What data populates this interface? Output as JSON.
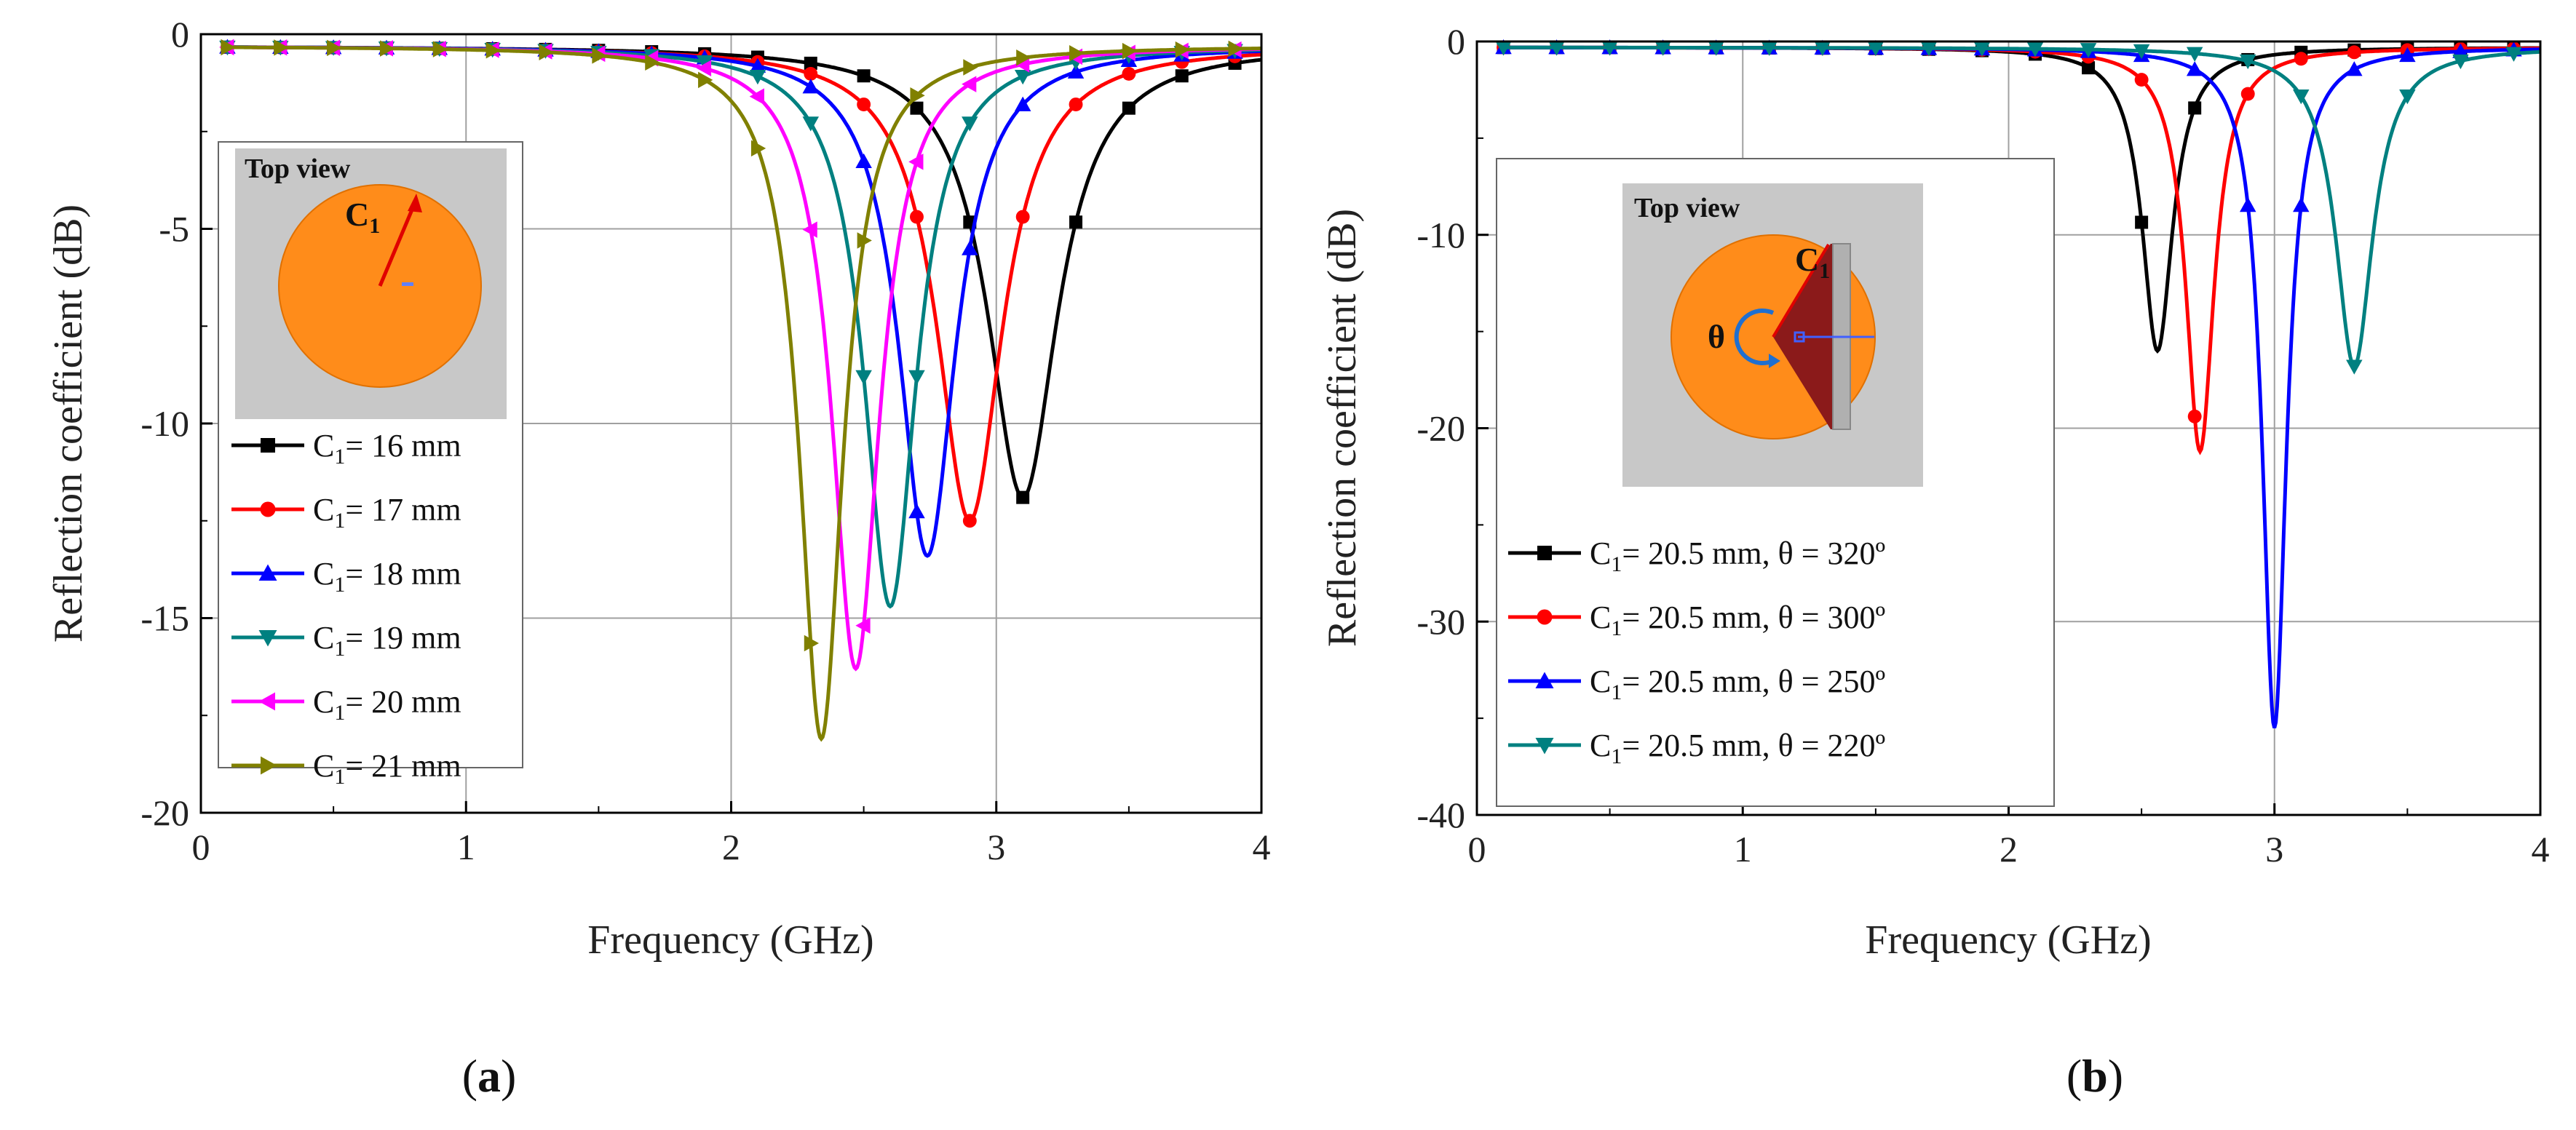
{
  "chart_data": [
    {
      "type": "line",
      "panel_label": "a",
      "title": "",
      "xlabel": "Frequency (GHz)",
      "ylabel": "Reflection coefficient (dB)",
      "xlim": [
        0,
        4
      ],
      "ylim": [
        -20,
        0
      ],
      "xticks": [
        0,
        1,
        2,
        3,
        4
      ],
      "yticks": [
        0,
        -5,
        -10,
        -15,
        -20
      ],
      "xtick_labels": [
        "0",
        "1",
        "2",
        "3",
        "4"
      ],
      "ytick_labels": [
        "0",
        "-5",
        "-10",
        "-15",
        "-20"
      ],
      "grid": true,
      "legend_position": "left",
      "inset": {
        "title": "Top view",
        "label_main": "C",
        "label_sub": "1"
      },
      "series": [
        {
          "name": "C1= 16 mm",
          "label_main": "C",
          "label_sub": "1",
          "label_rest": "= 16 mm",
          "color": "#000000",
          "marker": "square",
          "f0": 3.1,
          "depth": -11.9,
          "bw": 0.16,
          "base": -0.3
        },
        {
          "name": "C1= 17 mm",
          "label_main": "C",
          "label_sub": "1",
          "label_rest": "= 17 mm",
          "color": "#ff0000",
          "marker": "circle",
          "f0": 2.9,
          "depth": -12.5,
          "bw": 0.15,
          "base": -0.3
        },
        {
          "name": "C1= 18 mm",
          "label_main": "C",
          "label_sub": "1",
          "label_rest": "= 18 mm",
          "color": "#0000ff",
          "marker": "triangle-up",
          "f0": 2.74,
          "depth": -13.4,
          "bw": 0.13,
          "base": -0.3
        },
        {
          "name": "C1= 19 mm",
          "label_main": "C",
          "label_sub": "1",
          "label_rest": "= 19 mm",
          "color": "#008080",
          "marker": "triangle-down",
          "f0": 2.6,
          "depth": -14.7,
          "bw": 0.12,
          "base": -0.3
        },
        {
          "name": "C1= 20 mm",
          "label_main": "C",
          "label_sub": "1",
          "label_rest": "= 20 mm",
          "color": "#ff00ff",
          "marker": "triangle-left",
          "f0": 2.47,
          "depth": -16.3,
          "bw": 0.11,
          "base": -0.3
        },
        {
          "name": "C1= 21 mm",
          "label_main": "C",
          "label_sub": "1",
          "label_rest": "= 21 mm",
          "color": "#808000",
          "marker": "triangle-right",
          "f0": 2.34,
          "depth": -18.1,
          "bw": 0.1,
          "base": -0.3
        }
      ]
    },
    {
      "type": "line",
      "panel_label": "b",
      "title": "",
      "xlabel": "Frequency (GHz)",
      "ylabel": "Reflection coefficient (dB)",
      "xlim": [
        0,
        4
      ],
      "ylim": [
        -40,
        0
      ],
      "xticks": [
        0,
        1,
        2,
        3,
        4
      ],
      "yticks": [
        0,
        -10,
        -20,
        -30,
        -40
      ],
      "xtick_labels": [
        "0",
        "1",
        "2",
        "3",
        "4"
      ],
      "ytick_labels": [
        "0",
        "-10",
        "-20",
        "-30",
        "-40"
      ],
      "grid": true,
      "legend_position": "bottom-left",
      "inset": {
        "title": "Top view",
        "label_main": "C",
        "label_sub": "1",
        "theta": "θ"
      },
      "series": [
        {
          "name": "C1= 20.5 mm, θ = 320º",
          "label_main": "C",
          "label_sub": "1",
          "label_rest": "= 20.5 mm, θ  = 320º",
          "color": "#000000",
          "marker": "square",
          "f0": 2.56,
          "depth": -16.0,
          "bw": 0.07,
          "base": -0.3
        },
        {
          "name": "C1= 20.5 mm, θ = 300º",
          "label_main": "C",
          "label_sub": "1",
          "label_rest": "= 20.5 mm, θ  = 300º",
          "color": "#ff0000",
          "marker": "circle",
          "f0": 2.72,
          "depth": -21.2,
          "bw": 0.065,
          "base": -0.3
        },
        {
          "name": "C1= 20.5 mm, θ = 250º",
          "label_main": "C",
          "label_sub": "1",
          "label_rest": "= 20.5 mm, θ  = 250º",
          "color": "#0000ff",
          "marker": "triangle-up",
          "f0": 3.0,
          "depth": -35.5,
          "bw": 0.055,
          "base": -0.3
        },
        {
          "name": "C1= 20.5 mm, θ = 220º",
          "label_main": "C",
          "label_sub": "1",
          "label_rest": "= 20.5 mm, θ  = 220º",
          "color": "#008080",
          "marker": "triangle-down",
          "f0": 3.3,
          "depth": -16.8,
          "bw": 0.085,
          "base": -0.3
        }
      ]
    }
  ]
}
